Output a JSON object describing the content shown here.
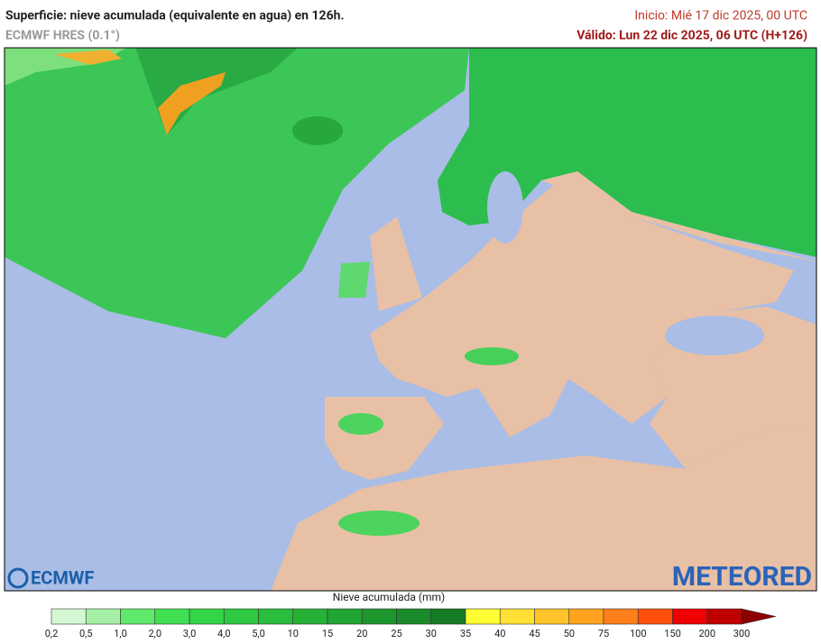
{
  "header": {
    "title": "Superficie: nieve acumulada (equivalente en agua) en 126h.",
    "model": "ECMWF HRES (0.1°)",
    "init": "Inicio: Mié 17 dic 2025, 00 UTC",
    "valid": "Válido: Lun 22 dic 2025, 06 UTC (H+126)"
  },
  "logos": {
    "left": "ECMWF",
    "right": "METEORED"
  },
  "legend": {
    "title": "Nieve acumulada (mm)",
    "labels": [
      "0,2",
      "0,5",
      "1,0",
      "2,0",
      "3,0",
      "4,0",
      "5,0",
      "10",
      "15",
      "20",
      "25",
      "30",
      "35",
      "40",
      "45",
      "50",
      "75",
      "100",
      "150",
      "200",
      "300"
    ],
    "colors": [
      "#d4f8d4",
      "#a6f0a6",
      "#5fe86a",
      "#40e052",
      "#34d448",
      "#2ec842",
      "#2abc3c",
      "#26b036",
      "#22a432",
      "#1e962e",
      "#1a8a2a",
      "#167c24",
      "#ffff33",
      "#ffe033",
      "#ffc42a",
      "#ffa31e",
      "#ff7f1a",
      "#ff4f0a",
      "#f00000",
      "#c00000",
      "#8c0000"
    ]
  }
}
